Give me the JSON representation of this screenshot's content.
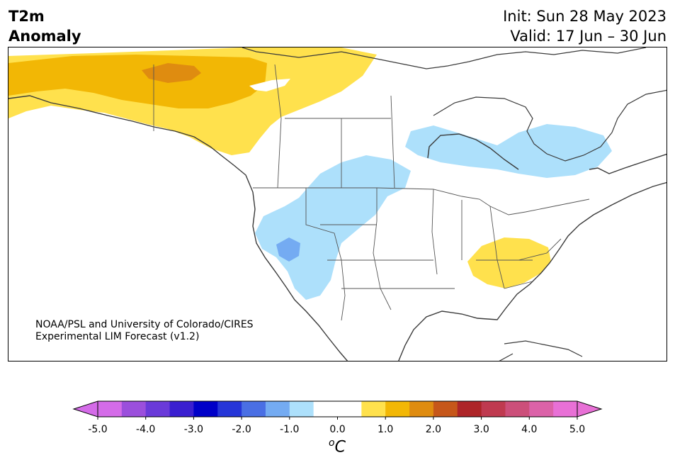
{
  "header": {
    "title_line1": "T2m",
    "title_line2": "Anomaly",
    "init_text": "Init: Sun 28 May 2023",
    "valid_text": "Valid: 17 Jun – 30 Jun"
  },
  "map": {
    "region": "North America",
    "credit_line1": "NOAA/PSL and University of Colorado/CIRES",
    "credit_line2": "Experimental LIM Forecast (v1.2)",
    "coastline_color": "#3a3a3a",
    "border_color": "#555555"
  },
  "colorbar": {
    "colors": [
      "#d46be8",
      "#9b4fdc",
      "#6a3ad9",
      "#3a1fd0",
      "#0000c8",
      "#2636d8",
      "#4a6fe4",
      "#74abf2",
      "#ade0fb",
      "#ffffff",
      "#ffffff",
      "#ffe14d",
      "#f2b705",
      "#df8c10",
      "#c6571a",
      "#ad2528",
      "#bf3a50",
      "#cc4f7a",
      "#db62a8",
      "#e870d6"
    ],
    "extend_left_color": "#d46be8",
    "extend_right_color": "#e870d6",
    "tick_labels": [
      "-5.0",
      "-4.0",
      "-3.0",
      "-2.0",
      "-1.0",
      "0.0",
      "1.0",
      "2.0",
      "3.0",
      "4.0",
      "5.0"
    ],
    "unit_base": "C",
    "unit_super": "o"
  }
}
